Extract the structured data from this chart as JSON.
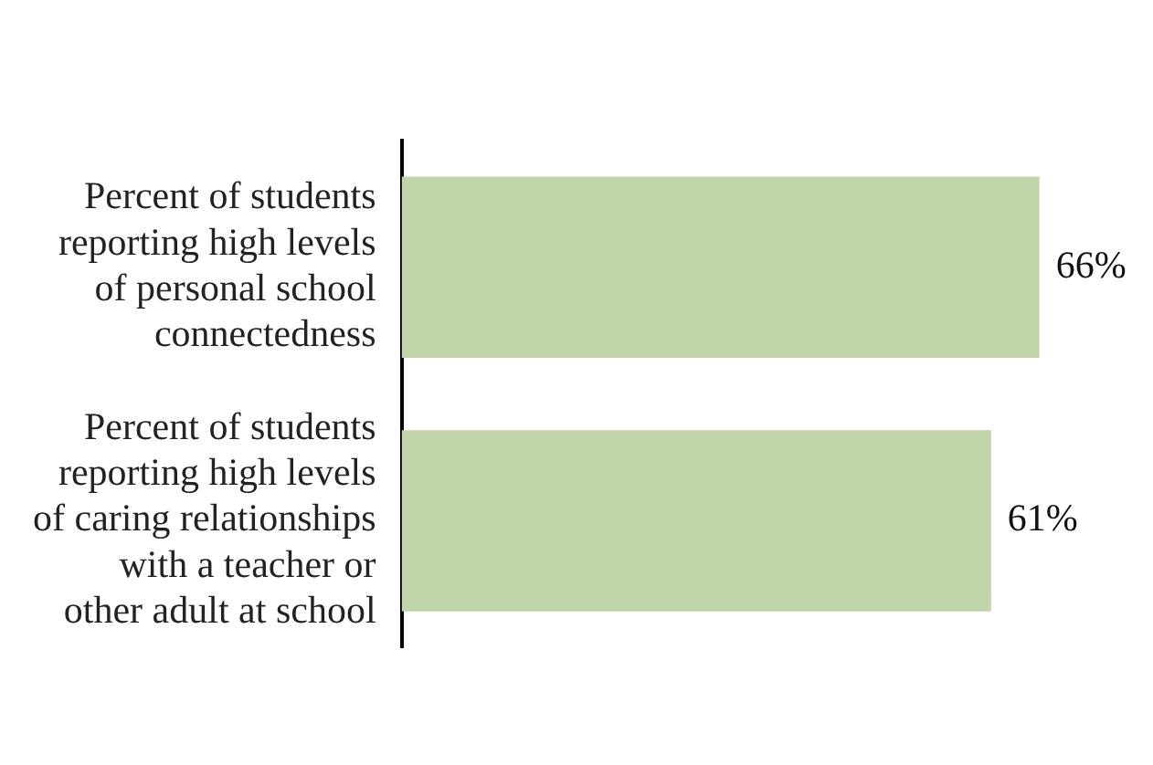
{
  "chart_data": {
    "type": "bar",
    "orientation": "horizontal",
    "categories": [
      "Percent of students\nreporting high levels\nof personal school\nconnectedness",
      "Percent of students\nreporting high levels\nof caring relationships\nwith a teacher or\nother adult at school"
    ],
    "values": [
      66,
      61
    ],
    "color": "#c0d5a9",
    "value_labels": [
      "66%",
      "61%"
    ]
  }
}
